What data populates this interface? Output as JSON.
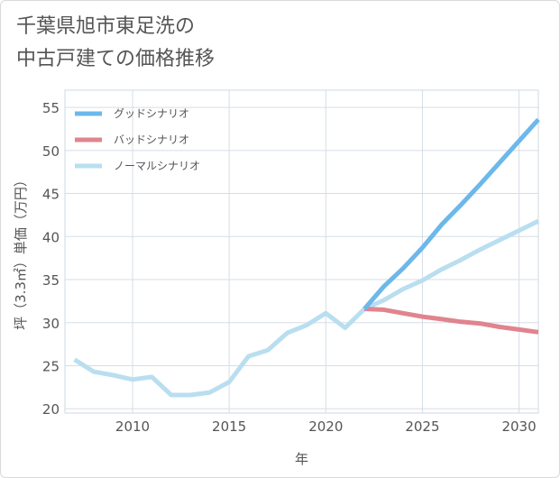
{
  "chart_title_lines": [
    "千葉県旭市東足洗の",
    "中古戸建ての価格推移"
  ],
  "chart_data": {
    "type": "line",
    "xlabel": "年",
    "ylabel": "坪（3.3㎡）単価（万円）",
    "xlim": [
      2006.5,
      2031
    ],
    "ylim": [
      19.5,
      57
    ],
    "xticks": [
      2010,
      2015,
      2020,
      2025,
      2030
    ],
    "yticks": [
      20,
      25,
      30,
      35,
      40,
      45,
      50,
      55
    ],
    "grid": true,
    "legend_position": "top-left",
    "series": [
      {
        "name": "グッドシナリオ",
        "color": "#6cb8ea",
        "x": [
          2022,
          2023,
          2024,
          2025,
          2026,
          2027,
          2028,
          2029,
          2030,
          2031
        ],
        "y": [
          31.6,
          34.2,
          36.3,
          38.7,
          41.4,
          43.7,
          46.1,
          48.6,
          51.1,
          53.6
        ]
      },
      {
        "name": "バッドシナリオ",
        "color": "#e0848e",
        "x": [
          2022,
          2023,
          2024,
          2025,
          2026,
          2027,
          2028,
          2029,
          2030,
          2031
        ],
        "y": [
          31.6,
          31.5,
          31.1,
          30.7,
          30.4,
          30.1,
          29.9,
          29.5,
          29.2,
          28.9
        ]
      },
      {
        "name": "ノーマルシナリオ",
        "color": "#b9def0",
        "x": [
          2007,
          2008,
          2009,
          2010,
          2011,
          2012,
          2013,
          2014,
          2015,
          2016,
          2017,
          2018,
          2019,
          2020,
          2021,
          2022,
          2023,
          2024,
          2025,
          2026,
          2027,
          2028,
          2029,
          2030,
          2031
        ],
        "y": [
          25.7,
          24.3,
          23.9,
          23.4,
          23.7,
          21.6,
          21.6,
          21.9,
          23.1,
          26.1,
          26.8,
          28.8,
          29.7,
          31.1,
          29.4,
          31.6,
          32.6,
          33.9,
          34.9,
          36.2,
          37.3,
          38.5,
          39.6,
          40.7,
          41.8
        ]
      }
    ]
  }
}
